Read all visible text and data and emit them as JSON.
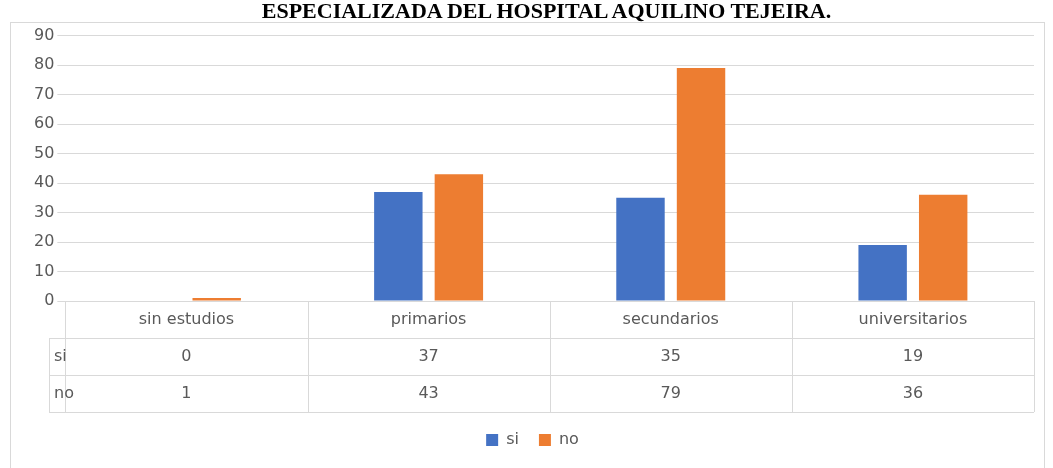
{
  "chart_data": {
    "type": "bar",
    "title": "ESPECIALIZADA DEL HOSPITAL AQUILINO TEJEIRA.",
    "categories": [
      "sin estudios",
      "primarios",
      "secundarios",
      "universitarios"
    ],
    "series": [
      {
        "name": "si",
        "color": "#4472c4",
        "values": [
          0,
          37,
          35,
          19
        ]
      },
      {
        "name": "no",
        "color": "#ed7d31",
        "values": [
          1,
          43,
          79,
          36
        ]
      }
    ],
    "ylim": [
      0,
      90
    ],
    "yticks": [
      0,
      10,
      20,
      30,
      40,
      50,
      60,
      70,
      80,
      90
    ],
    "grid": "y",
    "legend": "bottom",
    "data_labels": true
  }
}
